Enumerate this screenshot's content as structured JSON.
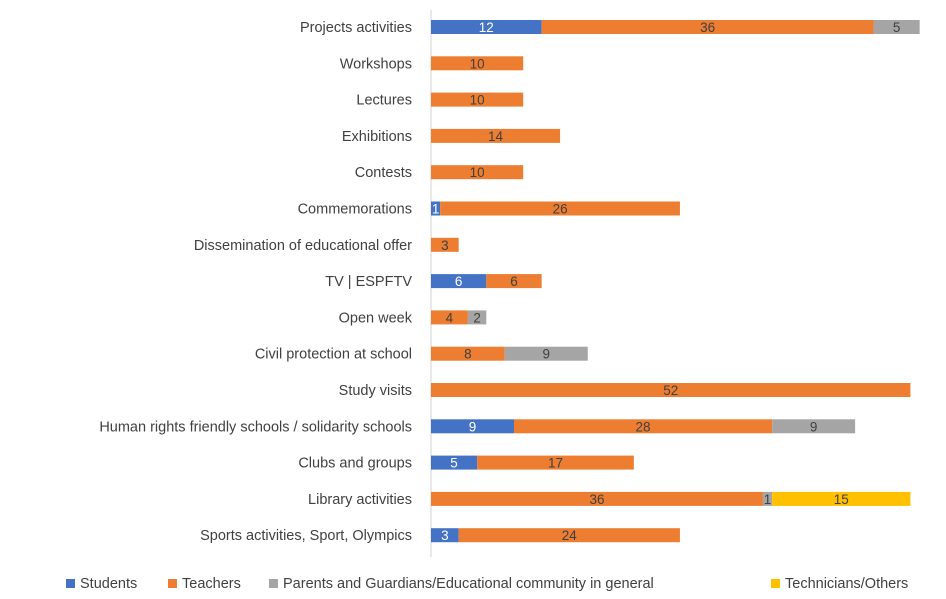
{
  "chart_data": {
    "type": "bar",
    "orientation": "horizontal",
    "stacked": true,
    "title": "",
    "xlabel": "",
    "ylabel": "",
    "grid": false,
    "legend_position": "bottom",
    "categories": [
      "Projects activities",
      "Workshops",
      "Lectures",
      "Exhibitions",
      "Contests",
      "Commemorations",
      "Dissemination of educational offer",
      "TV | ESPFTV",
      "Open week",
      "Civil protection at school",
      "Study visits",
      "Human rights friendly schools / solidarity schools",
      "Clubs and groups",
      "Library activities",
      "Sports activities, Sport, Olympics"
    ],
    "series": [
      {
        "name": "Students",
        "color": "#4472C4",
        "values": [
          12,
          0,
          0,
          0,
          0,
          1,
          0,
          6,
          0,
          0,
          0,
          9,
          5,
          0,
          3
        ]
      },
      {
        "name": "Teachers",
        "color": "#ED7D31",
        "values": [
          36,
          10,
          10,
          14,
          10,
          26,
          3,
          6,
          4,
          8,
          52,
          28,
          17,
          36,
          24
        ]
      },
      {
        "name": "Parents and Guardians/Educational community in general",
        "color": "#A5A5A5",
        "values": [
          5,
          0,
          0,
          0,
          0,
          0,
          0,
          0,
          2,
          9,
          0,
          9,
          0,
          1,
          0
        ]
      },
      {
        "name": "Technicians/Others",
        "color": "#FFC000",
        "values": [
          0,
          0,
          0,
          0,
          0,
          0,
          0,
          0,
          0,
          0,
          0,
          0,
          0,
          15,
          0
        ]
      }
    ]
  }
}
